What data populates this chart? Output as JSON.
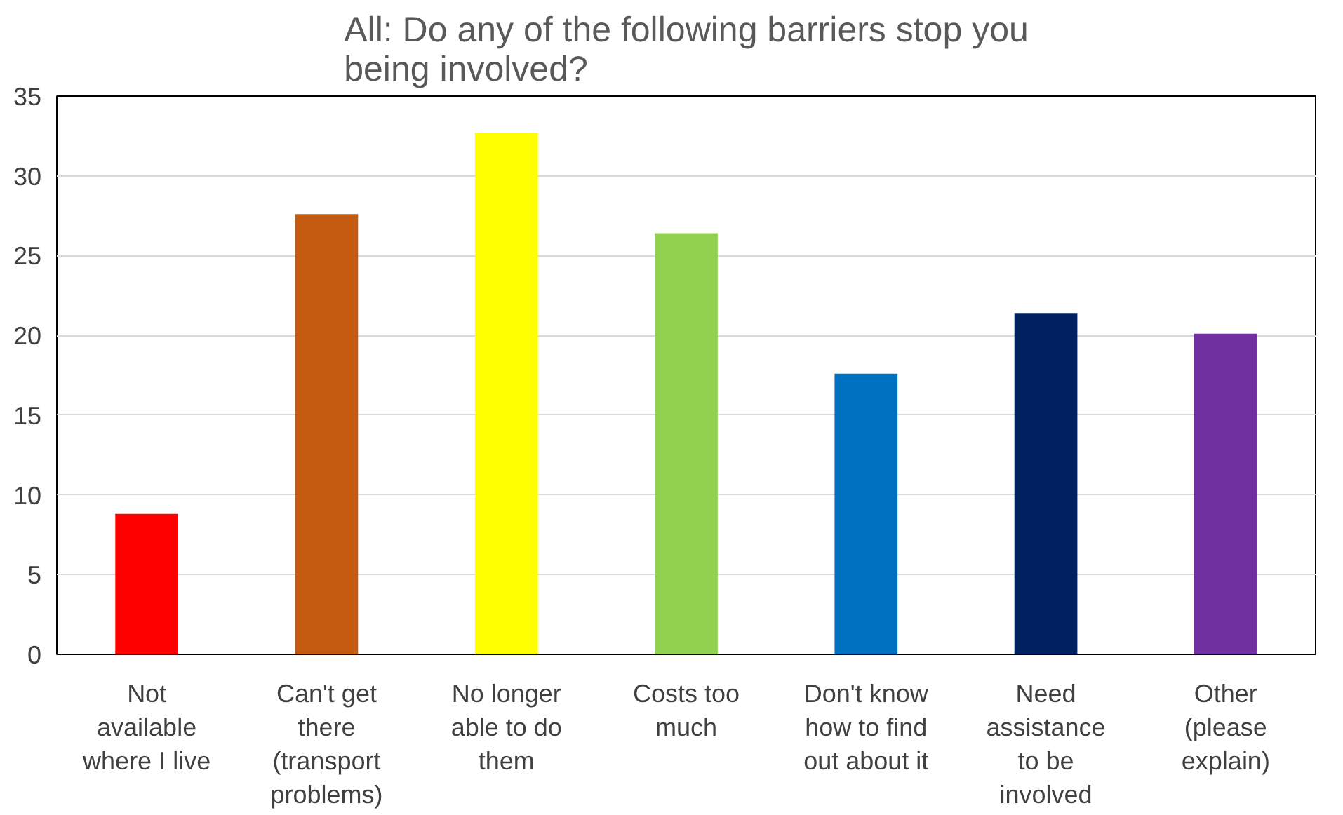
{
  "chart_data": {
    "type": "bar",
    "title": "All: Do any of the following barriers stop you being involved?",
    "categories": [
      "Not available where I live",
      "Can't get there (transport problems)",
      "No longer able to do them",
      "Costs too much",
      "Don't know how to find out about it",
      "Need assistance to be involved",
      "Other (please explain)"
    ],
    "values": [
      8.8,
      27.6,
      32.7,
      26.4,
      17.6,
      21.4,
      20.1
    ],
    "colors": [
      "#ff0000",
      "#c55a11",
      "#ffff00",
      "#92d050",
      "#0070c0",
      "#002060",
      "#7030a0"
    ],
    "ylim": [
      0,
      35
    ],
    "yticks": [
      0,
      5,
      10,
      15,
      20,
      25,
      30,
      35
    ],
    "grid": "y"
  }
}
